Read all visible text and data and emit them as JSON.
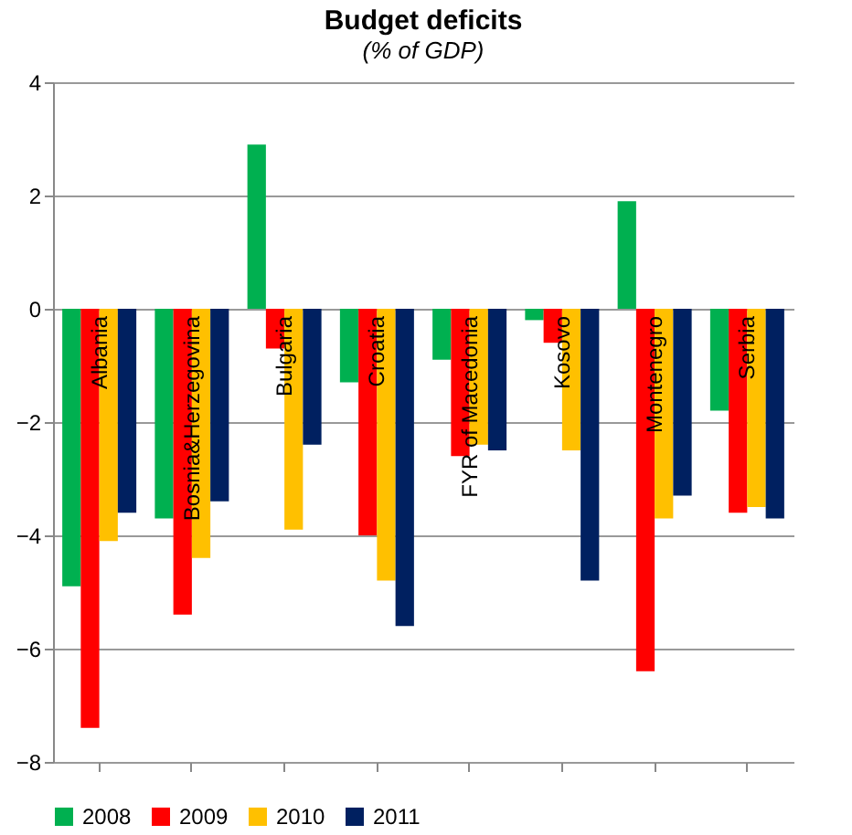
{
  "chart_data": {
    "type": "bar",
    "title": "Budget deficits",
    "subtitle": "(% of GDP)",
    "categories": [
      "Albania",
      "Bosnia&Herzegovina",
      "Bulgaria",
      "Croatia",
      "FYR of Macedonia",
      "Kosovo",
      "Montenegro",
      "Serbia"
    ],
    "series": [
      {
        "name": "2008",
        "color": "#00b050",
        "values": [
          -4.9,
          -3.7,
          2.9,
          -1.3,
          -0.9,
          -0.2,
          1.9,
          -1.8
        ]
      },
      {
        "name": "2009",
        "color": "#ff0000",
        "values": [
          -7.4,
          -5.4,
          -0.7,
          -4.0,
          -2.6,
          -0.6,
          -6.4,
          -3.6
        ]
      },
      {
        "name": "2010",
        "color": "#ffc000",
        "values": [
          -4.1,
          -4.4,
          -3.9,
          -4.8,
          -2.4,
          -2.5,
          -3.7,
          -3.5
        ]
      },
      {
        "name": "2011",
        "color": "#002060",
        "values": [
          -3.6,
          -3.4,
          -2.4,
          -5.6,
          -2.5,
          -4.8,
          -3.3,
          -3.7
        ]
      }
    ],
    "ylim": [
      -8,
      4
    ],
    "yticks": [
      -8,
      -6,
      -4,
      -2,
      0,
      2,
      4
    ],
    "grid": "y",
    "legend": "bottom"
  }
}
